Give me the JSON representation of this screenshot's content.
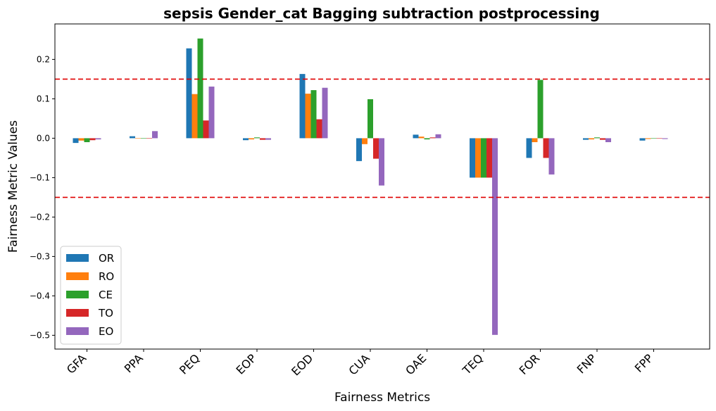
{
  "chart_data": {
    "type": "bar",
    "title": "sepsis Gender_cat Bagging subtraction postprocessing",
    "xlabel": "Fairness Metrics",
    "ylabel": "Fairness Metric Values",
    "categories": [
      "GFA",
      "PPA",
      "PEQ",
      "EOP",
      "EOD",
      "CUA",
      "OAE",
      "TEQ",
      "FOR",
      "FNP",
      "FPP"
    ],
    "ylim": [
      -0.535,
      0.29
    ],
    "yticks": [
      0.2,
      0.1,
      0.0,
      -0.1,
      -0.2,
      -0.3,
      -0.4,
      -0.5
    ],
    "ytick_labels": [
      "0.2",
      "0.1",
      "0.0",
      "−0.1",
      "−0.2",
      "−0.3",
      "−0.4",
      "−0.5"
    ],
    "thresholds": [
      0.15,
      -0.15
    ],
    "threshold_color": "#e00000",
    "grid": false,
    "legend_position": "lower-left",
    "series": [
      {
        "name": "OR",
        "color": "#1f77b4",
        "values": [
          -0.012,
          0.005,
          0.228,
          -0.005,
          0.163,
          -0.058,
          0.009,
          -0.1,
          -0.05,
          -0.004,
          -0.006
        ]
      },
      {
        "name": "RO",
        "color": "#ff7f0e",
        "values": [
          -0.006,
          0.0,
          0.112,
          -0.003,
          0.113,
          -0.015,
          0.004,
          -0.1,
          -0.01,
          -0.003,
          -0.002
        ]
      },
      {
        "name": "CE",
        "color": "#2ca02c",
        "values": [
          -0.01,
          -0.001,
          0.253,
          0.002,
          0.122,
          0.099,
          -0.003,
          -0.1,
          0.148,
          0.002,
          0.0
        ]
      },
      {
        "name": "TO",
        "color": "#d62728",
        "values": [
          -0.005,
          -0.001,
          0.045,
          -0.004,
          0.048,
          -0.052,
          0.002,
          -0.1,
          -0.05,
          -0.004,
          0.0
        ]
      },
      {
        "name": "EO",
        "color": "#9467bd",
        "values": [
          -0.003,
          0.018,
          0.131,
          -0.004,
          0.128,
          -0.12,
          0.01,
          -0.499,
          -0.092,
          -0.01,
          -0.002
        ]
      }
    ]
  }
}
